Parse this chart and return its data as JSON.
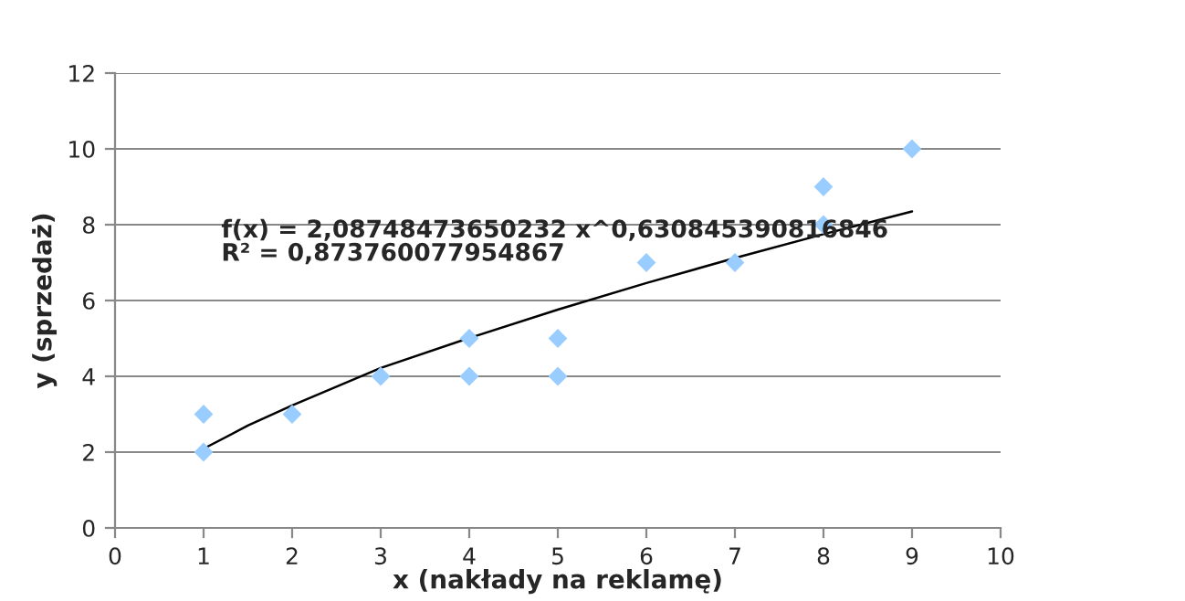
{
  "chart_data": {
    "type": "scatter",
    "xlabel": "x (nakłady na reklamę)",
    "ylabel": "y (sprzedaż)",
    "series": [
      {
        "color": "#99ccff",
        "marker": "diamond",
        "x": [
          1,
          1,
          2,
          3,
          4,
          4,
          5,
          5,
          6,
          7,
          8,
          8,
          9
        ],
        "values": [
          3,
          2,
          3,
          4,
          5,
          4,
          5,
          4,
          7,
          7,
          9,
          8,
          10
        ]
      },
      {
        "type": "line",
        "color": "#000000",
        "marker": "none",
        "x": [
          1,
          1.5,
          2,
          3,
          4,
          5,
          6,
          7,
          8,
          9
        ],
        "values": [
          2.09,
          2.7,
          3.23,
          4.22,
          5.01,
          5.76,
          6.46,
          7.12,
          7.75,
          8.35
        ]
      }
    ],
    "annotations": [
      "f(x) = 2,08748473650232 x^0,630845390816846\nR² = 0,873760077954867"
    ],
    "xlim": [
      0,
      10
    ],
    "xticks": [
      0,
      1,
      2,
      3,
      4,
      5,
      6,
      7,
      8,
      9,
      10
    ],
    "ylim": [
      0,
      12
    ],
    "yticks": [
      0,
      2,
      4,
      6,
      8,
      10,
      12
    ],
    "grid": "y",
    "legend": false
  }
}
